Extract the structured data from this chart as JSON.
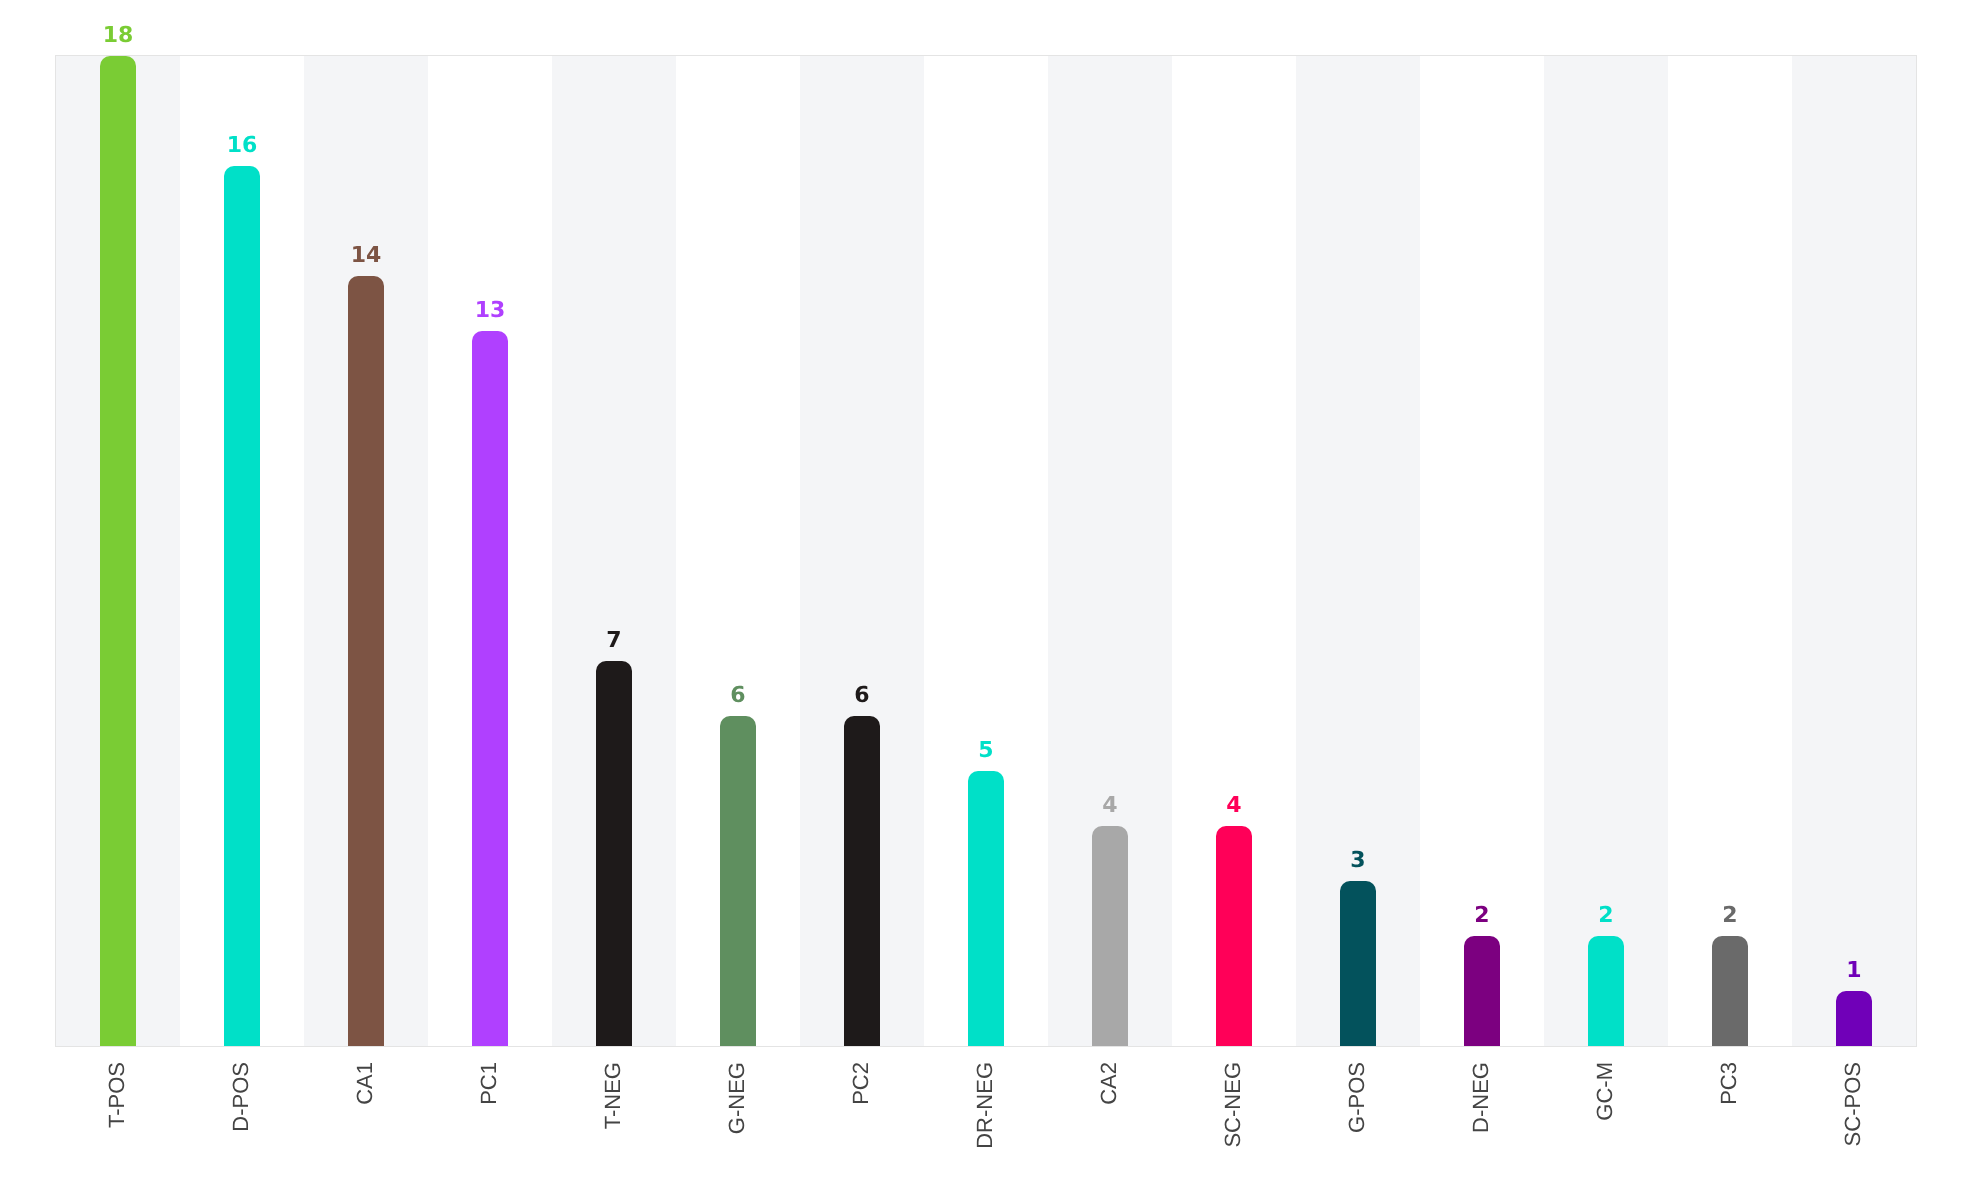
{
  "chart_data": {
    "type": "bar",
    "categories": [
      "T-POS",
      "D-POS",
      "CA1",
      "PC1",
      "T-NEG",
      "G-NEG",
      "PC2",
      "DR-NEG",
      "CA2",
      "SC-NEG",
      "G-POS",
      "D-NEG",
      "GC-M",
      "PC3",
      "SC-POS"
    ],
    "values": [
      18,
      16,
      14,
      13,
      7,
      6,
      6,
      5,
      4,
      4,
      3,
      2,
      2,
      2,
      1
    ],
    "colors": [
      "#7acc34",
      "#00e0c8",
      "#7d5444",
      "#b040ff",
      "#1e1a1a",
      "#5f8f5f",
      "#1e1a1a",
      "#00e0c8",
      "#a8a8a8",
      "#ff0058",
      "#03525c",
      "#7c0080",
      "#00e0c8",
      "#6a6a6a",
      "#7000b8"
    ],
    "data_labels": true
  }
}
